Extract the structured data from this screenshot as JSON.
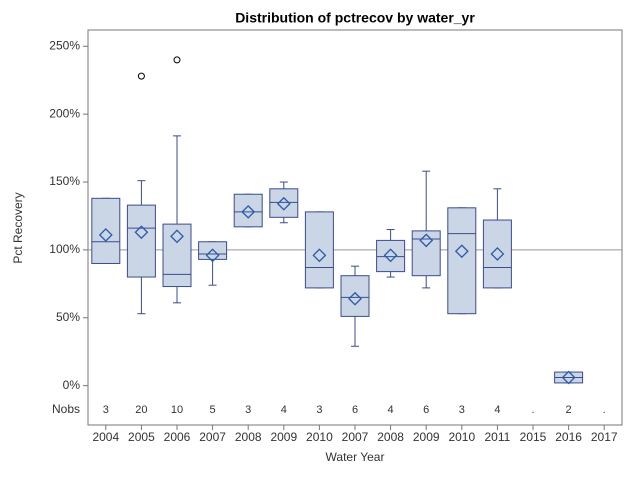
{
  "chart_data": {
    "type": "box",
    "title": "Distribution of pctrecov by water_yr",
    "x_label": "Water Year",
    "y_label": "Pct Recovery",
    "nobs_label": "Nobs",
    "categories": [
      "2004",
      "2005",
      "2006",
      "2007",
      "2008",
      "2009",
      "2010",
      "2007",
      "2008",
      "2009",
      "2010",
      "2011",
      "2015",
      "2016",
      "2017"
    ],
    "nobs": [
      "3",
      "20",
      "10",
      "5",
      "3",
      "4",
      "3",
      "6",
      "4",
      "6",
      "3",
      "4",
      ".",
      "2",
      "."
    ],
    "min": [
      90,
      53,
      61,
      74,
      117,
      120,
      72,
      29,
      80,
      72,
      53,
      72,
      null,
      2,
      null
    ],
    "q1": [
      90,
      80,
      73,
      93,
      117,
      124,
      72,
      51,
      84,
      81,
      53,
      72,
      null,
      2,
      null
    ],
    "median": [
      106,
      116,
      82,
      97,
      128,
      135,
      87,
      65,
      95,
      108,
      112,
      87,
      null,
      6,
      null
    ],
    "q3": [
      138,
      133,
      119,
      106,
      141,
      145,
      128,
      81,
      107,
      114,
      131,
      122,
      null,
      10,
      null
    ],
    "max": [
      138,
      151,
      184,
      106,
      141,
      150,
      128,
      88,
      115,
      158,
      131,
      145,
      null,
      10,
      null
    ],
    "mean": [
      111,
      113,
      110,
      96,
      128,
      134,
      96,
      64,
      96,
      107,
      99,
      97,
      null,
      6,
      null
    ],
    "outliers": [
      [],
      [
        228
      ],
      [
        240
      ],
      [],
      [],
      [],
      [],
      [],
      [],
      [],
      [],
      [],
      [],
      [],
      []
    ],
    "ylim": [
      -29,
      262
    ],
    "yticks": [
      {
        "value": 0,
        "label": "0%"
      },
      {
        "value": 50,
        "label": "50%"
      },
      {
        "value": 100,
        "label": "100%"
      },
      {
        "value": 150,
        "label": "150%"
      },
      {
        "value": 200,
        "label": "200%"
      },
      {
        "value": 250,
        "label": "250%"
      }
    ],
    "reference_line": 100,
    "box_color": "#cad5e5",
    "edge_color": "#3a4d8c",
    "mean_color": "#2a5aab"
  }
}
